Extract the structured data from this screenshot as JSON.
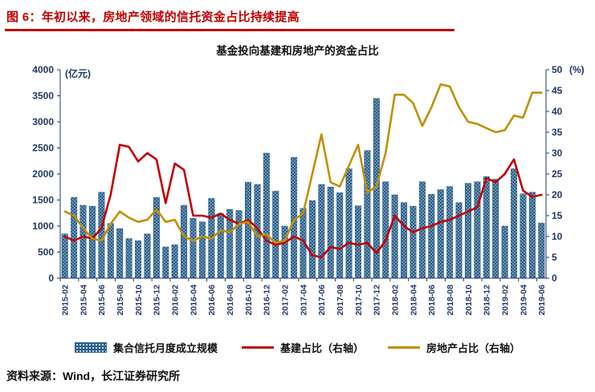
{
  "header": {
    "figure_label": "图 6：",
    "title": "年初以来，房地产领域的信托资金占比持续提高"
  },
  "source_note": "资料来源：Wind，长江证券研究所",
  "colors": {
    "accent_red": "#C00000",
    "bar_blue": "#2C5F8A",
    "bar_dot": "#cfe0ef",
    "line_red": "#C00000",
    "line_gold": "#BF9000",
    "axis_text": "#1F3864"
  },
  "chart_data": {
    "type": "bar",
    "title": "基金投向基建和房地产的资金占比",
    "left_axis": {
      "label": "(亿元)",
      "min": 0,
      "max": 4000,
      "step": 500
    },
    "right_axis": {
      "label": "(%)",
      "min": 0,
      "max": 50,
      "step": 5
    },
    "x": [
      "2015-02",
      "2015-03",
      "2015-04",
      "2015-05",
      "2015-06",
      "2015-07",
      "2015-08",
      "2015-09",
      "2015-10",
      "2015-11",
      "2015-12",
      "2016-01",
      "2016-02",
      "2016-03",
      "2016-04",
      "2016-05",
      "2016-06",
      "2016-07",
      "2016-08",
      "2016-09",
      "2016-10",
      "2016-11",
      "2016-12",
      "2017-01",
      "2017-02",
      "2017-03",
      "2017-04",
      "2017-05",
      "2017-06",
      "2017-07",
      "2017-08",
      "2017-09",
      "2017-10",
      "2017-11",
      "2017-12",
      "2018-01",
      "2018-02",
      "2018-03",
      "2018-04",
      "2018-05",
      "2018-06",
      "2018-07",
      "2018-08",
      "2018-09",
      "2018-10",
      "2018-11",
      "2018-12",
      "2019-01",
      "2019-02",
      "2019-03",
      "2019-04",
      "2019-05",
      "2019-06"
    ],
    "x_tick_every": 2,
    "series": [
      {
        "name": "集合信托月度成立规模",
        "type": "bar",
        "axis": "left",
        "values": [
          850,
          1550,
          1400,
          1380,
          1650,
          1050,
          950,
          760,
          720,
          850,
          1550,
          600,
          640,
          1400,
          1150,
          1080,
          1530,
          1240,
          1320,
          1300,
          1840,
          1800,
          2400,
          1670,
          1000,
          2320,
          1340,
          1490,
          1800,
          1750,
          1640,
          2100,
          1390,
          2450,
          3450,
          1850,
          1600,
          1450,
          1380,
          1850,
          1610,
          1700,
          1760,
          1450,
          1820,
          1850,
          1950,
          1900,
          1000,
          2100,
          1620,
          1650,
          1060
        ]
      },
      {
        "name": "基建占比（右轴）",
        "type": "line",
        "axis": "right",
        "values": [
          10,
          9,
          10,
          9.5,
          12,
          20,
          32,
          31.5,
          28,
          30,
          28.5,
          18,
          27.5,
          26,
          15,
          15,
          14.5,
          15.5,
          14,
          13,
          14,
          12,
          9,
          8,
          8.5,
          10,
          9,
          5.5,
          5,
          7.5,
          7,
          8.5,
          8,
          8.5,
          6,
          9,
          15,
          12.5,
          11,
          12,
          12.5,
          13.5,
          14,
          15,
          16,
          17,
          24,
          23,
          25,
          28.5,
          21,
          19.5,
          20
        ]
      },
      {
        "name": "房地产占比（右轴）",
        "type": "line",
        "axis": "right",
        "values": [
          16,
          15,
          12,
          9.5,
          9,
          13,
          16,
          14.5,
          13.5,
          14,
          16.5,
          13.5,
          14,
          10,
          9,
          10,
          9.5,
          11.5,
          11,
          13,
          13.5,
          10,
          10.5,
          8.5,
          9,
          14,
          15.5,
          25,
          34.5,
          23,
          22,
          27,
          32,
          20.5,
          22,
          30,
          44,
          44,
          42,
          36.5,
          41,
          46.5,
          46,
          41,
          37.5,
          37,
          36,
          35,
          35.5,
          39,
          38.5,
          44.5,
          44.5
        ]
      }
    ]
  }
}
